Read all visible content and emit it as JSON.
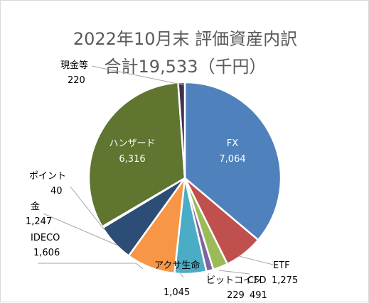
{
  "chart_data": {
    "type": "pie",
    "title_line1": "2022年10月末  評価資産内訳",
    "title_line2": "合計19,533（千円）",
    "slices": [
      {
        "label": "FX",
        "value": 7064,
        "value_text": "7,064",
        "color": "#4f81bd"
      },
      {
        "label": "ETF",
        "value": 1275,
        "value_text": "1,275",
        "color": "#c0504d"
      },
      {
        "label": "CFD",
        "value": 491,
        "value_text": "491",
        "color": "#9bbb59"
      },
      {
        "label": "ビットコイン",
        "value": 229,
        "value_text": "229",
        "color": "#8064a2"
      },
      {
        "label": "アクサ生命",
        "value": 1045,
        "value_text": "1,045",
        "color": "#4bacc6"
      },
      {
        "label": "IDECO",
        "value": 1606,
        "value_text": "1,606",
        "color": "#f79646"
      },
      {
        "label": "金",
        "value": 1247,
        "value_text": "1,247",
        "color": "#2c4d75"
      },
      {
        "label": "ポイント",
        "value": 40,
        "value_text": "40",
        "color": "#772c2a"
      },
      {
        "label": "ハンザード",
        "value": 6316,
        "value_text": "6,316",
        "color": "#5f7530"
      },
      {
        "label": "現金等",
        "value": 220,
        "value_text": "220",
        "color": "#3f3151"
      }
    ]
  }
}
